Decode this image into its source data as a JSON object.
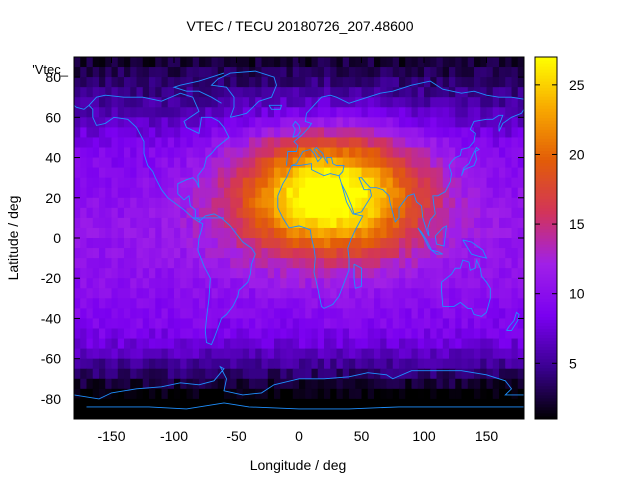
{
  "chart_data": {
    "type": "heatmap",
    "title": "VTEC / TECU 20180726_207.48600",
    "xlabel": "Longitude / deg",
    "ylabel": "Latitude / deg",
    "series_key": "'Vtec_",
    "xlim": [
      -180,
      180
    ],
    "ylim": [
      -90,
      90
    ],
    "xticks": [
      -150,
      -100,
      -50,
      0,
      50,
      100,
      150
    ],
    "yticks": [
      -80,
      -60,
      -40,
      -20,
      0,
      20,
      40,
      60,
      80
    ],
    "zlim": [
      1,
      27
    ],
    "colorbar_ticks": [
      5,
      10,
      15,
      20,
      25
    ],
    "colormap": [
      "#000000",
      "#3a0090",
      "#7a00f0",
      "#a020e8",
      "#d2345a",
      "#e25c08",
      "#f8a800",
      "#ffff00"
    ],
    "peak": {
      "lon": 25,
      "lat": 22,
      "value": 26
    },
    "grid_step_deg": 5,
    "overlay": "coastlines",
    "coastline_color": "#1e90ff"
  }
}
